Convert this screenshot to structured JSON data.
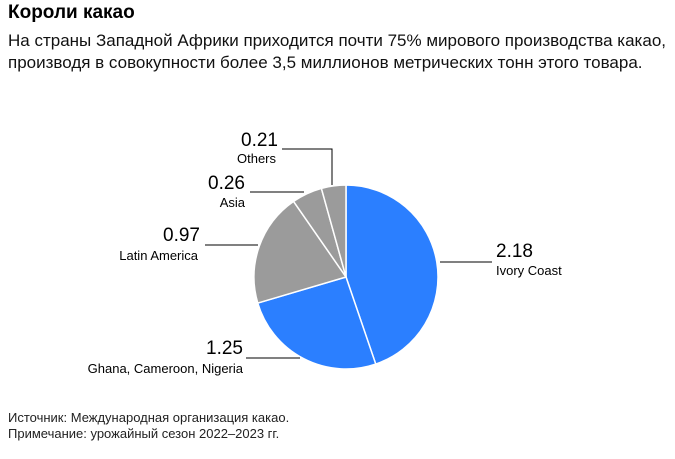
{
  "title": "Короли какао",
  "subtitle": "На страны Западной Африки приходится почти 75% мирового производства какао, производя в совокупности более 3,5 миллионов метрических тонн этого товара.",
  "footer": {
    "source": "Источник: Международная организация какао.",
    "note": "Примечание: урожайный сезон 2022–2023 гг."
  },
  "colors": {
    "africa": "#2B7FFF",
    "other": "#9B9B9B",
    "leader": "#000000"
  },
  "chart_data": {
    "type": "pie",
    "title": "",
    "slices": [
      {
        "label": "Ivory Coast",
        "value": 2.18,
        "display": "2.18",
        "color": "#2B7FFF"
      },
      {
        "label": "Ghana, Cameroon, Nigeria",
        "value": 1.25,
        "display": "1.25",
        "color": "#2B7FFF"
      },
      {
        "label": "Latin America",
        "value": 0.97,
        "display": "0.97",
        "color": "#9B9B9B"
      },
      {
        "label": "Asia",
        "value": 0.26,
        "display": "0.26",
        "color": "#9B9B9B"
      },
      {
        "label": "Others",
        "value": 0.21,
        "display": "0.21",
        "color": "#9B9B9B"
      }
    ]
  }
}
